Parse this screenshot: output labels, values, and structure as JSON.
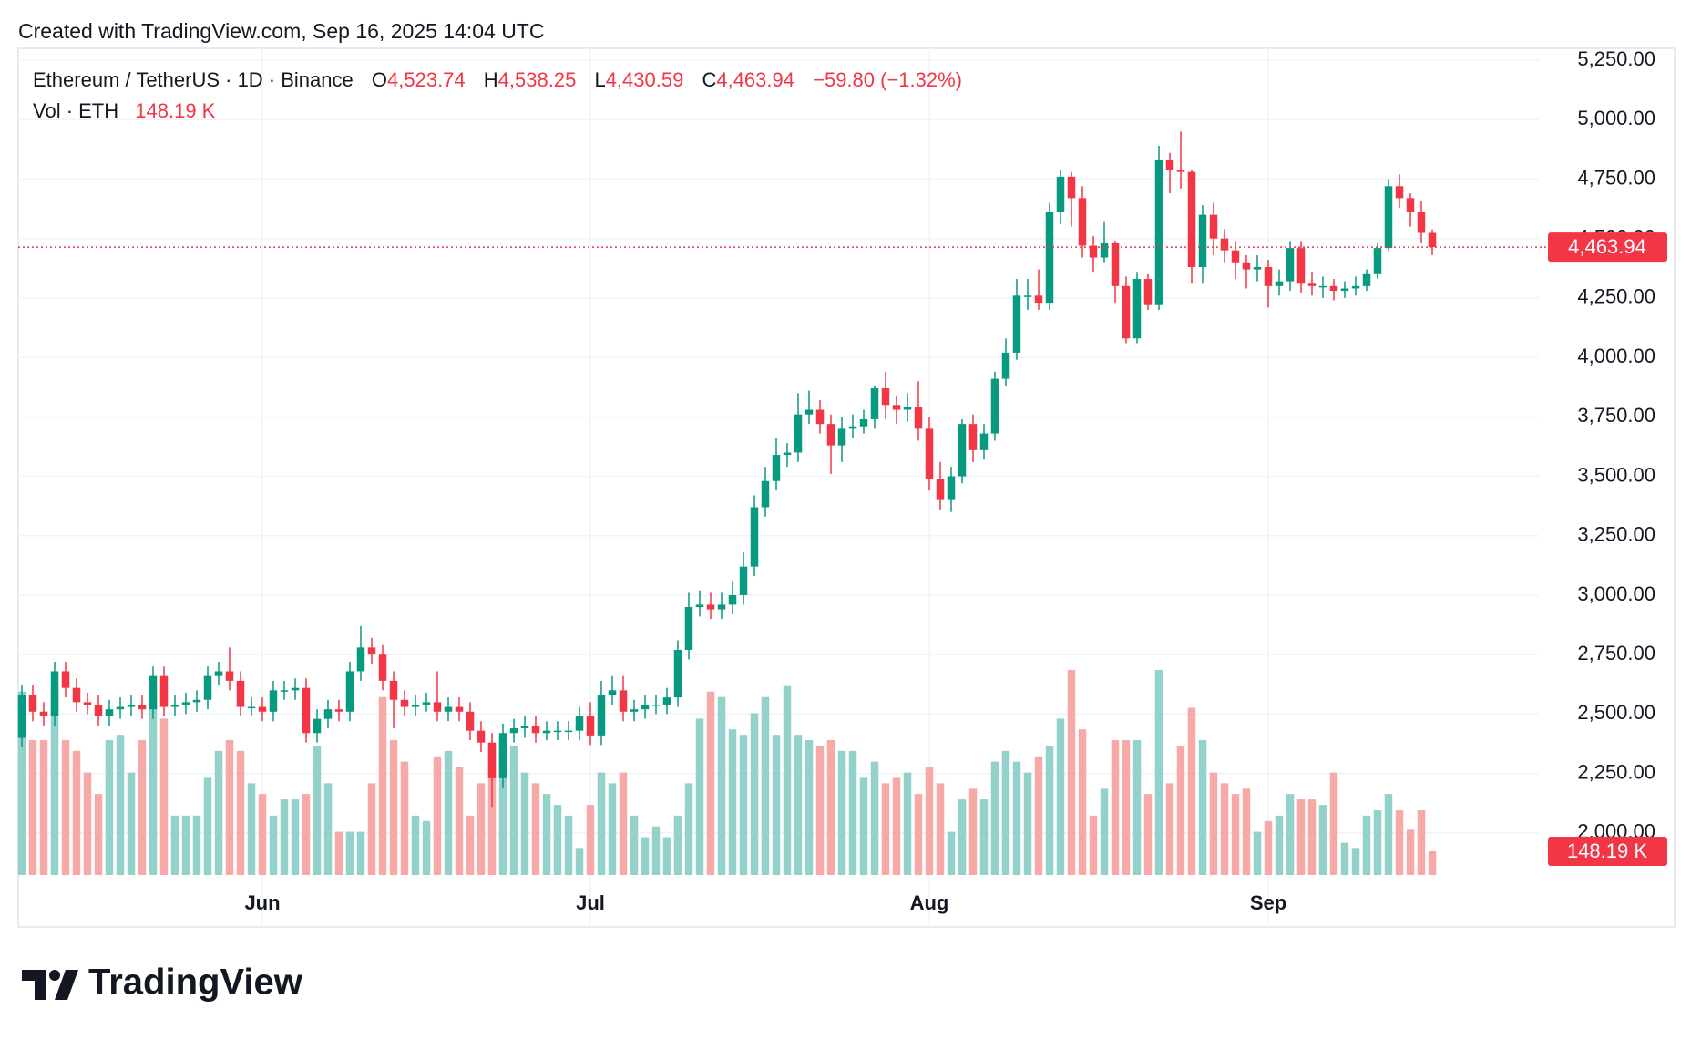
{
  "header": {
    "created": "Created with TradingView.com, Sep 16, 2025 14:04 UTC",
    "symbol": "Ethereum / TetherUS · 1D · Binance",
    "ohlc_legend": [
      {
        "key": "O",
        "value": "4,523.74"
      },
      {
        "key": "H",
        "value": "4,538.25"
      },
      {
        "key": "L",
        "value": "4,430.59"
      },
      {
        "key": "C",
        "value": "4,463.94"
      }
    ],
    "change": "−59.80 (−1.32%)",
    "volume_title": "Vol · ETH",
    "volume_value": "148.19 K"
  },
  "brand": "TradingView",
  "chart_data": {
    "type": "candlestick",
    "categories": [
      null,
      null,
      null,
      null,
      null,
      null,
      null,
      null,
      null,
      null,
      null,
      null,
      null,
      null,
      null,
      null,
      null,
      null,
      null,
      null,
      null,
      null,
      "Jun",
      null,
      null,
      null,
      null,
      null,
      null,
      null,
      null,
      null,
      null,
      null,
      null,
      null,
      null,
      null,
      null,
      null,
      null,
      null,
      null,
      null,
      null,
      null,
      null,
      null,
      null,
      null,
      null,
      null,
      "Jul",
      null,
      null,
      null,
      null,
      null,
      null,
      null,
      null,
      null,
      null,
      null,
      null,
      null,
      null,
      null,
      null,
      null,
      null,
      null,
      null,
      null,
      null,
      null,
      null,
      null,
      null,
      null,
      null,
      null,
      null,
      "Aug",
      null,
      null,
      null,
      null,
      null,
      null,
      null,
      null,
      null,
      null,
      null,
      null,
      null,
      null,
      null,
      null,
      null,
      null,
      null,
      null,
      null,
      null,
      null,
      null,
      null,
      null,
      null,
      null,
      null,
      null,
      "Sep",
      null,
      null,
      null,
      null,
      null,
      null,
      null,
      null,
      null,
      null,
      null,
      null,
      null,
      null,
      null
    ],
    "open": [
      2400,
      2580,
      2510,
      2490,
      2680,
      2610,
      2550,
      2540,
      2490,
      2520,
      2530,
      2540,
      2520,
      2660,
      2530,
      2540,
      2550,
      2560,
      2660,
      2680,
      2640,
      2530,
      2530,
      2510,
      2600,
      2600,
      2610,
      2420,
      2480,
      2520,
      2510,
      2680,
      2780,
      2750,
      2640,
      2560,
      2530,
      2540,
      2550,
      2510,
      2530,
      2510,
      2430,
      2380,
      2230,
      2420,
      2440,
      2450,
      2420,
      2430,
      2430,
      2430,
      2490,
      2410,
      2580,
      2600,
      2510,
      2520,
      2540,
      2540,
      2570,
      2770,
      2950,
      2960,
      2940,
      2960,
      3000,
      3120,
      3370,
      3480,
      3590,
      3600,
      3760,
      3780,
      3720,
      3630,
      3700,
      3710,
      3740,
      3870,
      3800,
      3780,
      3790,
      3700,
      3490,
      3400,
      3500,
      3720,
      3610,
      3680,
      3910,
      4020,
      4260,
      4260,
      4230,
      4610,
      4760,
      4670,
      4470,
      4420,
      4480,
      4300,
      4080,
      4330,
      4220,
      4830,
      4790,
      4780,
      4380,
      4600,
      4500,
      4450,
      4400,
      4370,
      4380,
      4300,
      4320,
      4460,
      4310,
      4300,
      4300,
      4280,
      4290,
      4300,
      4350,
      4460,
      4720,
      4670,
      4610,
      4523.74
    ],
    "high": [
      2620,
      2620,
      2550,
      2720,
      2720,
      2650,
      2590,
      2580,
      2560,
      2570,
      2580,
      2580,
      2700,
      2700,
      2580,
      2590,
      2600,
      2700,
      2720,
      2780,
      2680,
      2570,
      2570,
      2640,
      2640,
      2650,
      2650,
      2520,
      2560,
      2560,
      2720,
      2870,
      2820,
      2790,
      2680,
      2600,
      2580,
      2590,
      2680,
      2570,
      2570,
      2550,
      2470,
      2420,
      2460,
      2480,
      2490,
      2490,
      2470,
      2470,
      2470,
      2530,
      2550,
      2640,
      2660,
      2660,
      2560,
      2580,
      2580,
      2610,
      2810,
      3010,
      3020,
      3010,
      3010,
      3060,
      3180,
      3420,
      3540,
      3660,
      3640,
      3850,
      3860,
      3820,
      3760,
      3750,
      3760,
      3780,
      3880,
      3940,
      3840,
      3850,
      3900,
      3750,
      3560,
      3540,
      3740,
      3760,
      3720,
      3940,
      4080,
      4330,
      4330,
      4370,
      4650,
      4790,
      4780,
      4720,
      4510,
      4570,
      4490,
      4340,
      4360,
      4350,
      4890,
      4860,
      4950,
      4790,
      4640,
      4650,
      4540,
      4490,
      4430,
      4430,
      4410,
      4370,
      4490,
      4490,
      4360,
      4340,
      4330,
      4320,
      4340,
      4370,
      4480,
      4750,
      4770,
      4690,
      4660,
      4538.25
    ],
    "low": [
      2360,
      2470,
      2450,
      2450,
      2570,
      2510,
      2500,
      2450,
      2450,
      2480,
      2490,
      2480,
      2480,
      2490,
      2490,
      2500,
      2510,
      2520,
      2620,
      2600,
      2490,
      2490,
      2470,
      2470,
      2560,
      2560,
      2380,
      2380,
      2440,
      2470,
      2470,
      2640,
      2710,
      2600,
      2440,
      2490,
      2490,
      2510,
      2470,
      2470,
      2470,
      2390,
      2340,
      2110,
      2190,
      2380,
      2400,
      2380,
      2390,
      2390,
      2390,
      2390,
      2370,
      2370,
      2540,
      2470,
      2470,
      2480,
      2500,
      2500,
      2530,
      2730,
      2910,
      2900,
      2900,
      2920,
      2960,
      3080,
      3330,
      3440,
      3540,
      3560,
      3720,
      3680,
      3510,
      3560,
      3660,
      3680,
      3700,
      3740,
      3720,
      3730,
      3650,
      3440,
      3360,
      3350,
      3470,
      3560,
      3570,
      3650,
      3880,
      3990,
      4200,
      4200,
      4200,
      4560,
      4550,
      4420,
      4360,
      4400,
      4230,
      4060,
      4060,
      4200,
      4200,
      4690,
      4710,
      4310,
      4310,
      4430,
      4400,
      4330,
      4290,
      4320,
      4210,
      4260,
      4280,
      4270,
      4260,
      4250,
      4240,
      4250,
      4260,
      4280,
      4330,
      4450,
      4630,
      4550,
      4480,
      4430.59
    ],
    "close": [
      2580,
      2510,
      2490,
      2680,
      2610,
      2550,
      2540,
      2490,
      2520,
      2530,
      2540,
      2520,
      2660,
      2530,
      2540,
      2550,
      2560,
      2660,
      2680,
      2640,
      2530,
      2530,
      2510,
      2600,
      2600,
      2610,
      2420,
      2480,
      2520,
      2510,
      2680,
      2780,
      2750,
      2640,
      2560,
      2530,
      2540,
      2550,
      2510,
      2530,
      2510,
      2430,
      2380,
      2230,
      2420,
      2440,
      2450,
      2420,
      2430,
      2430,
      2430,
      2490,
      2410,
      2580,
      2600,
      2510,
      2520,
      2540,
      2540,
      2570,
      2770,
      2950,
      2960,
      2940,
      2960,
      3000,
      3120,
      3370,
      3480,
      3590,
      3600,
      3760,
      3780,
      3720,
      3630,
      3700,
      3710,
      3740,
      3870,
      3800,
      3780,
      3790,
      3700,
      3490,
      3400,
      3500,
      3720,
      3610,
      3680,
      3910,
      4020,
      4260,
      4260,
      4230,
      4610,
      4760,
      4670,
      4470,
      4420,
      4480,
      4300,
      4080,
      4330,
      4220,
      4830,
      4790,
      4780,
      4380,
      4600,
      4500,
      4450,
      4400,
      4370,
      4380,
      4300,
      4320,
      4460,
      4310,
      4300,
      4300,
      4280,
      4290,
      4300,
      4350,
      4460,
      4720,
      4670,
      4610,
      4523.74,
      4463.94
    ],
    "volume": [
      1146000,
      843000,
      843000,
      1146000,
      843000,
      775000,
      640000,
      506000,
      843000,
      876000,
      640000,
      843000,
      1146000,
      977000,
      371000,
      371000,
      371000,
      607000,
      775000,
      843000,
      775000,
      573000,
      506000,
      371000,
      472000,
      472000,
      506000,
      809000,
      573000,
      270000,
      270000,
      270000,
      573000,
      1112000,
      843000,
      708000,
      371000,
      337000,
      741000,
      775000,
      674000,
      371000,
      573000,
      809000,
      843000,
      809000,
      640000,
      573000,
      506000,
      438000,
      371000,
      169000,
      438000,
      640000,
      573000,
      640000,
      371000,
      236000,
      303000,
      236000,
      371000,
      573000,
      977000,
      1146000,
      1112000,
      910000,
      876000,
      1011000,
      1112000,
      876000,
      1180000,
      876000,
      843000,
      809000,
      843000,
      775000,
      775000,
      607000,
      708000,
      573000,
      607000,
      640000,
      506000,
      674000,
      573000,
      270000,
      472000,
      539000,
      472000,
      708000,
      775000,
      708000,
      640000,
      741000,
      809000,
      977000,
      1281000,
      910000,
      371000,
      539000,
      843000,
      843000,
      843000,
      506000,
      1281000,
      573000,
      809000,
      1045000,
      843000,
      640000,
      573000,
      506000,
      539000,
      270000,
      337000,
      371000,
      506000,
      472000,
      472000,
      438000,
      640000,
      202000,
      169000,
      371000,
      404000,
      506000,
      404000,
      283000,
      404000,
      148190
    ],
    "ylim": [
      1800,
      5300
    ],
    "yticks": [
      {
        "value": 2000,
        "label": "2,000.00"
      },
      {
        "value": 2250,
        "label": "2,250.00"
      },
      {
        "value": 2500,
        "label": "2,500.00"
      },
      {
        "value": 2750,
        "label": "2,750.00"
      },
      {
        "value": 3000,
        "label": "3,000.00"
      },
      {
        "value": 3250,
        "label": "3,250.00"
      },
      {
        "value": 3500,
        "label": "3,500.00"
      },
      {
        "value": 3750,
        "label": "3,750.00"
      },
      {
        "value": 4000,
        "label": "4,000.00"
      },
      {
        "value": 4250,
        "label": "4,250.00"
      },
      {
        "value": 4500,
        "label": "4,500.00"
      },
      {
        "value": 4750,
        "label": "4,750.00"
      },
      {
        "value": 5000,
        "label": "5,000.00"
      },
      {
        "value": 5250,
        "label": "5,250.00"
      }
    ],
    "grid": true,
    "up_color": "#089981",
    "down_color": "#f23645",
    "volume_up_color": "#93d2cb",
    "volume_down_color": "#f7a9a7"
  }
}
